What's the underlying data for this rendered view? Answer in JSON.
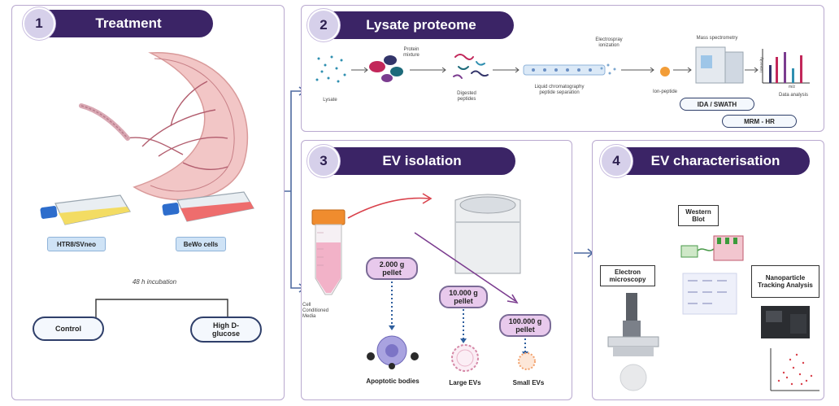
{
  "panels": {
    "treatment": {
      "number": "1",
      "title": "Treatment"
    },
    "lysate": {
      "number": "2",
      "title": "Lysate proteome"
    },
    "ev_isolation": {
      "number": "3",
      "title": "EV isolation"
    },
    "ev_char": {
      "number": "4",
      "title": "EV characterisation"
    }
  },
  "treatment": {
    "cell_line_1": "HTR8/SVneo",
    "cell_line_2": "BeWo cells",
    "incubation": "48 h incubation",
    "condition_1": "Control",
    "condition_2": "High D-glucose"
  },
  "lysate": {
    "step_lysate": "Lysate",
    "step_protein_mixture": "Protein mixture",
    "step_digested": "Digested peptides",
    "step_lc": "Liquid chromatography peptide separation",
    "step_esi": "Electrospray ionization",
    "step_ion": "Ion-peptide",
    "step_ms": "Mass spectrometry",
    "step_data": "Data analysis",
    "axis_x": "m/z",
    "axis_y": "Intensity",
    "method_1": "IDA / SWATH",
    "method_2": "MRM - HR"
  },
  "ev_isolation": {
    "media": "Cell Conditioned Media",
    "pellet_1": "2.000 g pellet",
    "pellet_2": "10.000 g pellet",
    "pellet_3": "100.000 g pellet",
    "product_1": "Apoptotic bodies",
    "product_2": "Large EVs",
    "product_3": "Small EVs"
  },
  "ev_char": {
    "method_1": "Electron microscopy",
    "method_2": "Western Blot",
    "method_3": "Nanoparticle Tracking Analysis"
  },
  "colors": {
    "header_bg": "#3b2466",
    "number_bg": "#d6d0ea",
    "panel_border": "#b9a9cf",
    "pellet_bg": "#e8c9ec",
    "arrow_red": "#d9414b",
    "arrow_purple": "#7b3c8f",
    "flow_arrow": "#4e6aa0"
  }
}
